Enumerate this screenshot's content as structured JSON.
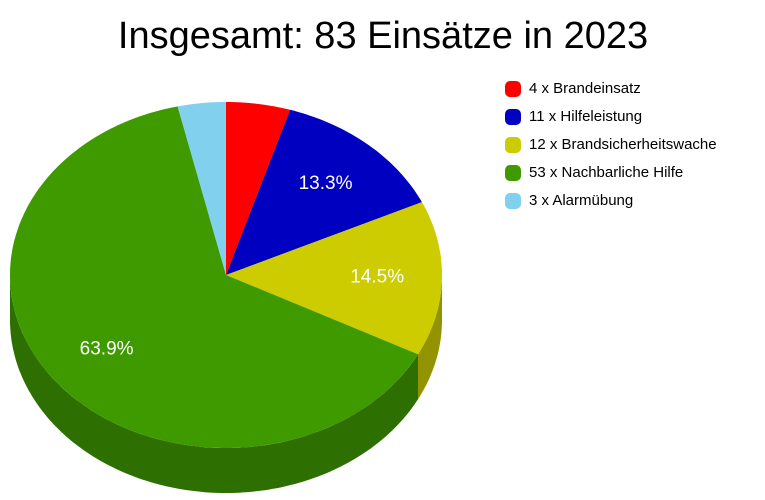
{
  "chart_data": {
    "type": "pie",
    "title": "Insgesamt: 83 Einsätze in 2023",
    "categories": [
      "4 x Brandeinsatz",
      "11 x Hilfeleistung",
      "12 x Brandsicherheitswache",
      "53 x Nachbarliche Hilfe",
      "3 x Alarmübung"
    ],
    "values": [
      4.8,
      13.3,
      14.5,
      63.9,
      3.6
    ],
    "value_labels": [
      null,
      "13.3%",
      "14.5%",
      "63.9%",
      null
    ],
    "colors": [
      "#ff0000",
      "#0000c0",
      "#cccc00",
      "#3f9a00",
      "#80d0ee"
    ],
    "legend": "right"
  }
}
